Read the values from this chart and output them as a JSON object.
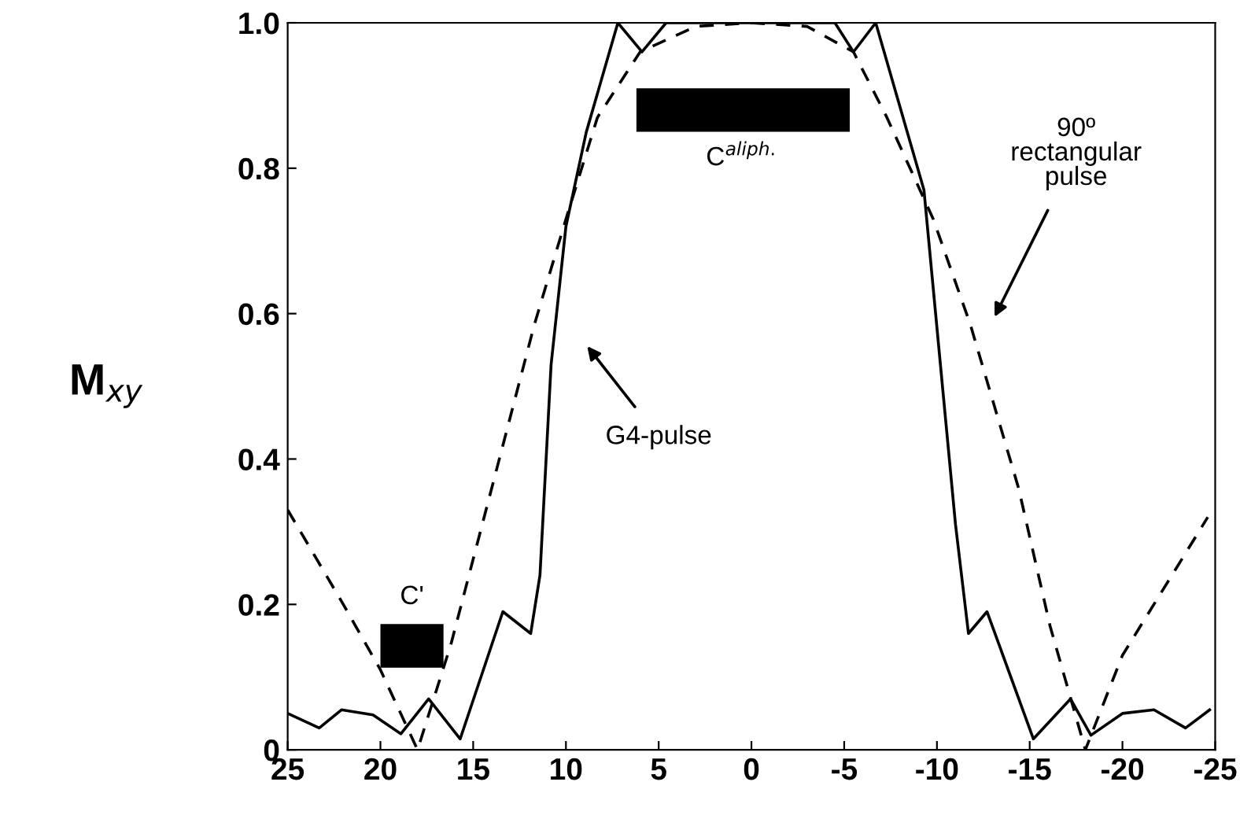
{
  "chart_data": {
    "type": "line",
    "ylabel": "M$_{xy}$",
    "xlim": [
      25,
      -25
    ],
    "xticks": [
      25,
      20,
      15,
      10,
      5,
      0,
      -5,
      -10,
      -15,
      -20,
      -25
    ],
    "ylim": [
      0,
      1
    ],
    "yticks": [
      0,
      0.2,
      0.4,
      0.6,
      0.8,
      {
        "value": 1,
        "label": "1.0"
      }
    ],
    "grid": false,
    "legend": false,
    "marker": "none",
    "series": [
      {
        "color": "#000000",
        "line_style": "solid",
        "x": [
          25,
          23.3,
          22.1,
          20.4,
          18.9,
          17.4,
          15.7,
          13.4,
          11.9,
          11.4,
          10.8,
          10.0,
          8.9,
          7.2,
          5.9,
          4.6,
          2,
          0,
          -2,
          -4.5,
          -5.5,
          -6.7,
          -9.3,
          -11.0,
          -11.7,
          -12.7,
          -15.2,
          -17.2,
          -18.3,
          -20.0,
          -21.7,
          -23.4,
          -24.7
        ],
        "values": [
          0.05,
          0.03,
          0.055,
          0.048,
          0.022,
          0.07,
          0.015,
          0.19,
          0.16,
          0.24,
          0.53,
          0.72,
          0.85,
          1.0,
          0.96,
          1.0,
          1.0,
          1.0,
          1.0,
          1.0,
          0.96,
          1.0,
          0.77,
          0.31,
          0.16,
          0.19,
          0.015,
          0.07,
          0.02,
          0.05,
          0.055,
          0.03,
          0.055
        ]
      },
      {
        "color": "#000000",
        "line_style": "dashed",
        "x": [
          25,
          22,
          20,
          18,
          16.2,
          14.0,
          11.7,
          10.0,
          8.3,
          6.0,
          3,
          0,
          -3,
          -5.5,
          -7.3,
          -9.8,
          -11.8,
          -14.4,
          -16.1,
          -18.0,
          -20.0,
          -24.6
        ],
        "values": [
          0.33,
          0.2,
          0.11,
          0.0,
          0.145,
          0.36,
          0.585,
          0.73,
          0.87,
          0.96,
          0.995,
          1.0,
          0.995,
          0.96,
          0.87,
          0.73,
          0.585,
          0.36,
          0.17,
          0.0,
          0.13,
          0.32
        ]
      }
    ],
    "bands": [
      {
        "axis": "x",
        "from": 20,
        "to": 16.6,
        "label": "C'",
        "color": "#000000"
      },
      {
        "axis": "x",
        "from": 6.2,
        "to": -5.3,
        "label": "C$^{aliph.}$",
        "color": "#000000"
      }
    ],
    "annotations": [
      "G4-pulse",
      "90º\nrectangular\npulse"
    ]
  }
}
